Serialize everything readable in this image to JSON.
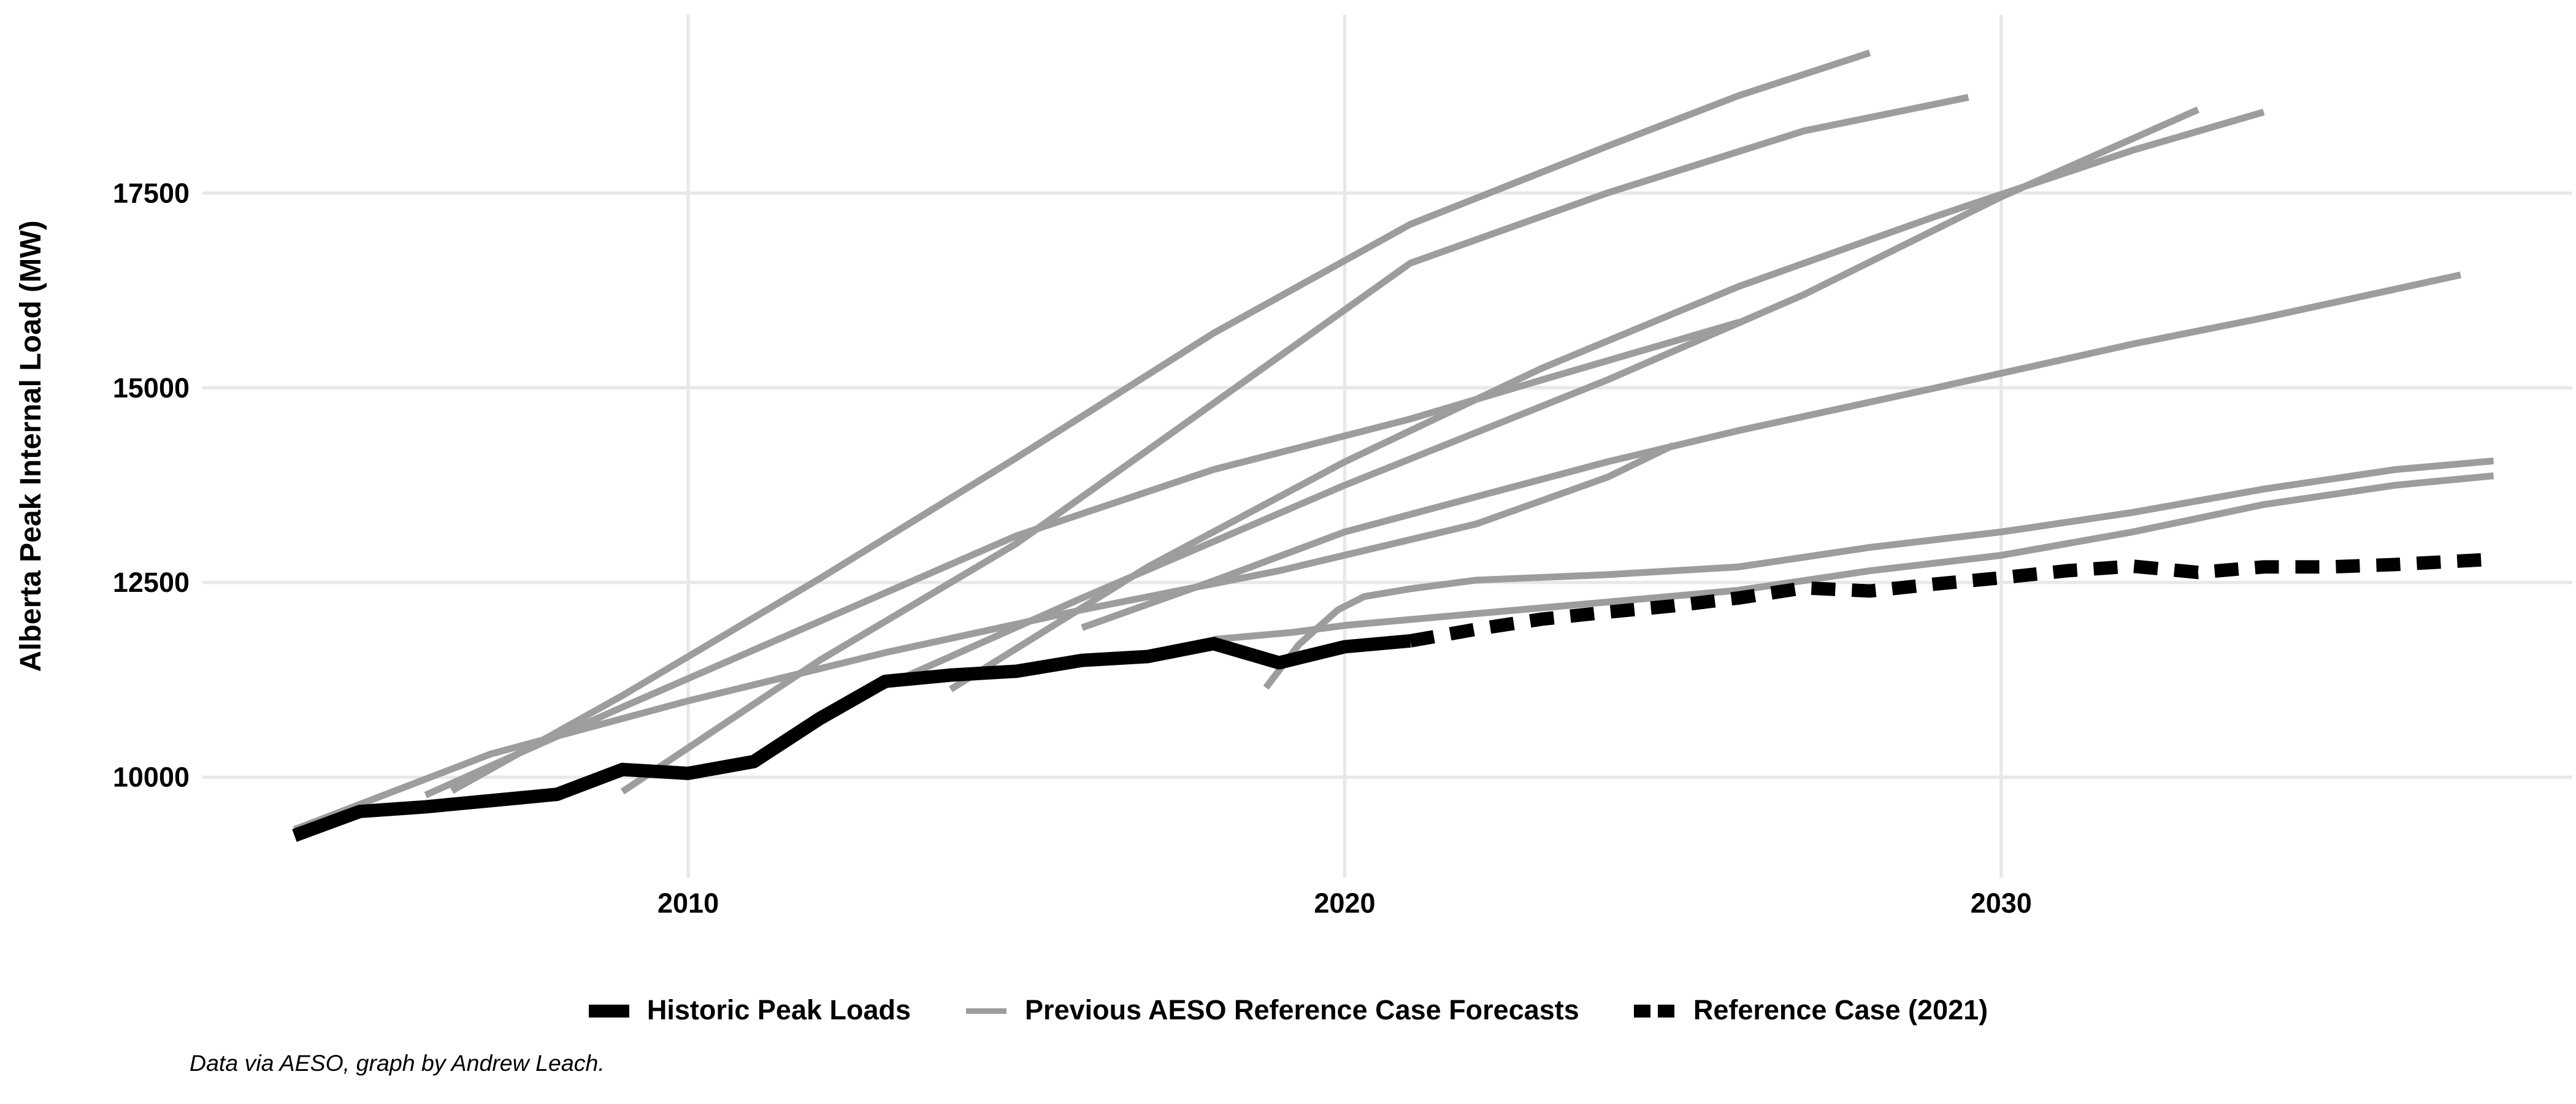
{
  "page": {
    "background": "#ffffff"
  },
  "chart_data": {
    "type": "line",
    "title": "",
    "xlabel": "",
    "ylabel": "Alberta Peak Internal Load (MW)",
    "caption": "Data via AESO, graph by Andrew Leach.",
    "x_ticks": [
      2010,
      2020,
      2030
    ],
    "y_ticks": [
      10000,
      12500,
      15000,
      17500
    ],
    "x_range": [
      2002.6,
      2038.7
    ],
    "y_range": [
      8710,
      19790
    ],
    "grid": true,
    "grid_color": "#e8e8e8",
    "background": "#ffffff",
    "legend_position": "bottom",
    "colors": {
      "historic": "#000000",
      "forecast": "#9d9d9d",
      "reference_2021": "#000000"
    },
    "legend": [
      {
        "label": "Historic Peak Loads",
        "swatch": "thick-black-line"
      },
      {
        "label": "Previous AESO Reference Case Forecasts",
        "swatch": "gray-line"
      },
      {
        "label": "Reference Case (2021)",
        "swatch": "dashed-black-line"
      }
    ],
    "series": [
      {
        "id": "historic",
        "name": "Historic Peak Loads",
        "role": "historic",
        "color": "#000000",
        "width": 7.3,
        "dash": null,
        "points": [
          [
            2004,
            9250
          ],
          [
            2005,
            9560
          ],
          [
            2006,
            9620
          ],
          [
            2007,
            9700
          ],
          [
            2008,
            9780
          ],
          [
            2009,
            10100
          ],
          [
            2010,
            10050
          ],
          [
            2011,
            10200
          ],
          [
            2012,
            10750
          ],
          [
            2013,
            11230
          ],
          [
            2014,
            11310
          ],
          [
            2015,
            11360
          ],
          [
            2016,
            11500
          ],
          [
            2017,
            11550
          ],
          [
            2018,
            11715
          ],
          [
            2019,
            11470
          ],
          [
            2020,
            11675
          ],
          [
            2021,
            11750
          ]
        ]
      },
      {
        "id": "forecast-2005",
        "name": "Previous AESO Reference Case Forecasts",
        "role": "forecast",
        "color": "#9d9d9d",
        "width": 3.7,
        "dash": null,
        "points": [
          [
            2004,
            9330
          ],
          [
            2007,
            10300
          ],
          [
            2010,
            10980
          ],
          [
            2013,
            11600
          ],
          [
            2016,
            12150
          ],
          [
            2019,
            12650
          ],
          [
            2022,
            13250
          ],
          [
            2024,
            13850
          ],
          [
            2025,
            14260
          ]
        ]
      },
      {
        "id": "forecast-2006",
        "name": "Previous AESO Reference Case Forecasts",
        "role": "forecast",
        "color": "#9d9d9d",
        "width": 3.7,
        "dash": null,
        "points": [
          [
            2006,
            9770
          ],
          [
            2009,
            10900
          ],
          [
            2012,
            12000
          ],
          [
            2015,
            13100
          ],
          [
            2018,
            13950
          ],
          [
            2021,
            14600
          ],
          [
            2023,
            15100
          ],
          [
            2026,
            15840
          ]
        ]
      },
      {
        "id": "forecast-2007",
        "name": "Previous AESO Reference Case Forecasts",
        "role": "forecast",
        "color": "#9d9d9d",
        "width": 3.7,
        "dash": null,
        "points": [
          [
            2006.4,
            9825
          ],
          [
            2009,
            11050
          ],
          [
            2012,
            12550
          ],
          [
            2015,
            14100
          ],
          [
            2018,
            15700
          ],
          [
            2021,
            17100
          ],
          [
            2024,
            18100
          ],
          [
            2026,
            18750
          ],
          [
            2028,
            19300
          ]
        ]
      },
      {
        "id": "forecast-2009",
        "name": "Previous AESO Reference Case Forecasts",
        "role": "forecast",
        "color": "#9d9d9d",
        "width": 3.7,
        "dash": null,
        "points": [
          [
            2009,
            9815
          ],
          [
            2012,
            11500
          ],
          [
            2015,
            13000
          ],
          [
            2018,
            14800
          ],
          [
            2021,
            16600
          ],
          [
            2024,
            17500
          ],
          [
            2027,
            18300
          ],
          [
            2029.5,
            18730
          ]
        ]
      },
      {
        "id": "forecast-2012",
        "name": "Previous AESO Reference Case Forecasts",
        "role": "forecast",
        "color": "#9d9d9d",
        "width": 3.7,
        "dash": null,
        "points": [
          [
            2012,
            10800
          ],
          [
            2016,
            12300
          ],
          [
            2020,
            13750
          ],
          [
            2024,
            15100
          ],
          [
            2027,
            16200
          ],
          [
            2030,
            17450
          ],
          [
            2033,
            18570
          ]
        ]
      },
      {
        "id": "forecast-2014",
        "name": "Previous AESO Reference Case Forecasts",
        "role": "forecast",
        "color": "#9d9d9d",
        "width": 3.7,
        "dash": null,
        "points": [
          [
            2014,
            11130
          ],
          [
            2017,
            12700
          ],
          [
            2020,
            14050
          ],
          [
            2023,
            15250
          ],
          [
            2026,
            16300
          ],
          [
            2029,
            17200
          ],
          [
            2032,
            18050
          ],
          [
            2034,
            18540
          ]
        ]
      },
      {
        "id": "forecast-2016",
        "name": "Previous AESO Reference Case Forecasts",
        "role": "forecast",
        "color": "#9d9d9d",
        "width": 3.7,
        "dash": null,
        "points": [
          [
            2016,
            11920
          ],
          [
            2018,
            12520
          ],
          [
            2020,
            13150
          ],
          [
            2022,
            13600
          ],
          [
            2024,
            14050
          ],
          [
            2026,
            14450
          ],
          [
            2029,
            15000
          ],
          [
            2032,
            15560
          ],
          [
            2034,
            15900
          ],
          [
            2037,
            16450
          ]
        ]
      },
      {
        "id": "forecast-2017",
        "name": "Previous AESO Reference Case Forecasts",
        "role": "forecast",
        "color": "#9d9d9d",
        "width": 3.7,
        "dash": null,
        "points": [
          [
            2018,
            11770
          ],
          [
            2019.2,
            11860
          ],
          [
            2020,
            11950
          ],
          [
            2022,
            12100
          ],
          [
            2024,
            12250
          ],
          [
            2026,
            12400
          ],
          [
            2028,
            12650
          ],
          [
            2030,
            12850
          ],
          [
            2032,
            13150
          ],
          [
            2034,
            13500
          ],
          [
            2036,
            13750
          ],
          [
            2037.5,
            13870
          ]
        ]
      },
      {
        "id": "forecast-2019",
        "name": "Previous AESO Reference Case Forecasts",
        "role": "forecast",
        "color": "#9d9d9d",
        "width": 3.7,
        "dash": null,
        "points": [
          [
            2018.8,
            11150
          ],
          [
            2019.3,
            11700
          ],
          [
            2019.9,
            12150
          ],
          [
            2020.3,
            12320
          ],
          [
            2021,
            12420
          ],
          [
            2022,
            12530
          ],
          [
            2024,
            12600
          ],
          [
            2026,
            12700
          ],
          [
            2028,
            12950
          ],
          [
            2030,
            13150
          ],
          [
            2032,
            13400
          ],
          [
            2034,
            13700
          ],
          [
            2036,
            13950
          ],
          [
            2037.5,
            14060
          ]
        ]
      },
      {
        "id": "reference-2021",
        "name": "Reference Case (2021)",
        "role": "reference-2021",
        "color": "#000000",
        "width": 7.3,
        "dash": [
          13,
          9
        ],
        "points": [
          [
            2021,
            11750
          ],
          [
            2022,
            11900
          ],
          [
            2023,
            12030
          ],
          [
            2024,
            12120
          ],
          [
            2025,
            12200
          ],
          [
            2026,
            12300
          ],
          [
            2027,
            12430
          ],
          [
            2028,
            12390
          ],
          [
            2029,
            12480
          ],
          [
            2030,
            12560
          ],
          [
            2031,
            12650
          ],
          [
            2032,
            12710
          ],
          [
            2033,
            12630
          ],
          [
            2034,
            12700
          ],
          [
            2035,
            12700
          ],
          [
            2036,
            12730
          ],
          [
            2037.5,
            12800
          ]
        ]
      }
    ]
  }
}
